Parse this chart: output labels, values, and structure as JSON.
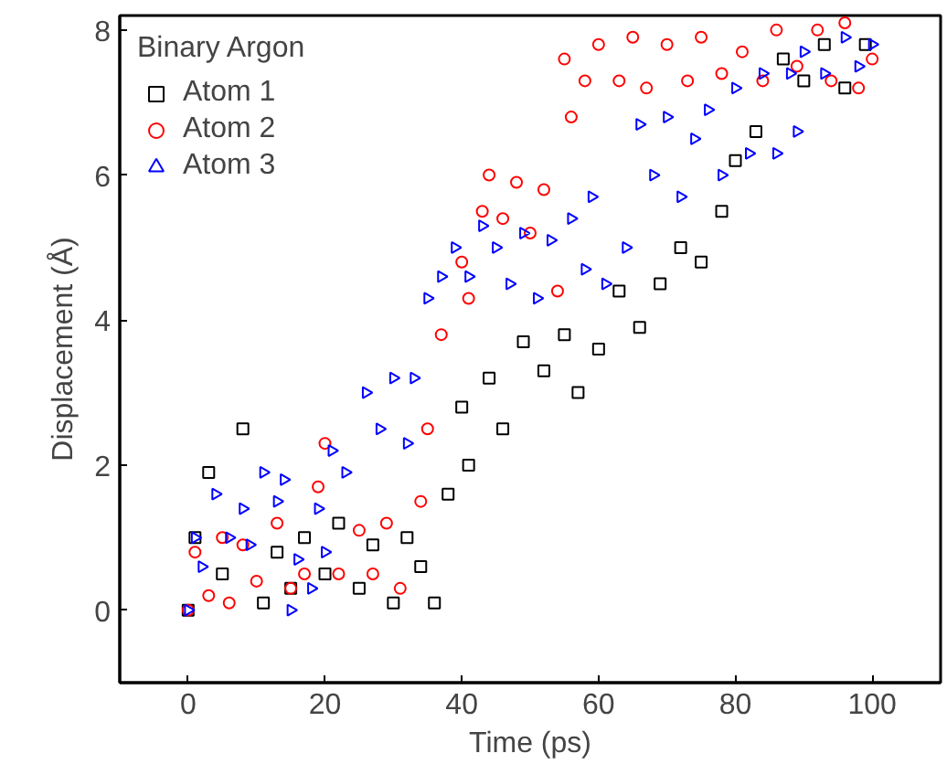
{
  "chart_data": {
    "type": "scatter",
    "xlabel": "Time (ps)",
    "ylabel": "Displacement (Å)",
    "legend_title": "Binary Argon",
    "legend": "top left",
    "grid": false,
    "xlim": [
      -10,
      110
    ],
    "xticks": [
      0,
      20,
      40,
      60,
      80,
      100
    ],
    "ylim": [
      -1,
      8.2
    ],
    "yticks": [
      0,
      2,
      4,
      6,
      8
    ],
    "series": [
      {
        "name": "Atom 1",
        "color": "#000000",
        "marker": "square",
        "x": [
          0,
          1,
          3,
          5,
          8,
          11,
          13,
          15,
          17,
          20,
          22,
          25,
          27,
          30,
          32,
          34,
          36,
          38,
          40,
          41,
          44,
          46,
          49,
          52,
          55,
          57,
          60,
          63,
          66,
          69,
          72,
          75,
          78,
          80,
          83,
          87,
          90,
          93,
          96,
          99
        ],
        "values": [
          0,
          1,
          1.9,
          0.5,
          2.5,
          0.1,
          0.8,
          0.3,
          1,
          0.5,
          1.2,
          0.3,
          0.9,
          0.1,
          1,
          0.6,
          0.1,
          1.6,
          2.8,
          2,
          3.2,
          2.5,
          3.7,
          3.3,
          3.8,
          3,
          3.6,
          4.4,
          3.9,
          4.5,
          5,
          4.8,
          5.5,
          6.2,
          6.6,
          7.6,
          7.3,
          7.8,
          7.2,
          7.8
        ]
      },
      {
        "name": "Atom 2",
        "color": "#ff0000",
        "marker": "circle",
        "x": [
          0,
          1,
          3,
          5,
          6,
          8,
          10,
          13,
          15,
          17,
          19,
          20,
          22,
          25,
          27,
          29,
          31,
          34,
          35,
          37,
          40,
          41,
          43,
          44,
          46,
          48,
          50,
          52,
          54,
          55,
          56,
          58,
          60,
          63,
          65,
          67,
          70,
          73,
          75,
          78,
          81,
          84,
          86,
          89,
          92,
          94,
          96,
          98,
          100
        ],
        "values": [
          0,
          0.8,
          0.2,
          1,
          0.1,
          0.9,
          0.4,
          1.2,
          0.3,
          0.5,
          1.7,
          2.3,
          0.5,
          1.1,
          0.5,
          1.2,
          0.3,
          1.5,
          2.5,
          3.8,
          4.8,
          4.3,
          5.5,
          6,
          5.4,
          5.9,
          5.2,
          5.8,
          4.4,
          7.6,
          6.8,
          7.3,
          7.8,
          7.3,
          7.9,
          7.2,
          7.8,
          7.3,
          7.9,
          7.4,
          7.7,
          7.3,
          8,
          7.5,
          8,
          7.3,
          8.1,
          7.2,
          7.6
        ]
      },
      {
        "name": "Atom 3",
        "color": "#0000ff",
        "marker": "triangle",
        "x": [
          0,
          1,
          2,
          4,
          6,
          8,
          9,
          11,
          13,
          14,
          15,
          16,
          18,
          19,
          20,
          21,
          23,
          26,
          28,
          30,
          32,
          33,
          35,
          37,
          39,
          41,
          43,
          45,
          47,
          49,
          51,
          53,
          56,
          58,
          59,
          61,
          64,
          66,
          68,
          70,
          72,
          74,
          76,
          78,
          80,
          82,
          84,
          86,
          88,
          89,
          90,
          93,
          96,
          98,
          100
        ],
        "values": [
          0,
          1,
          0.6,
          1.6,
          1,
          1.4,
          0.9,
          1.9,
          1.5,
          1.8,
          0,
          0.7,
          0.3,
          1.4,
          0.8,
          2.2,
          1.9,
          3,
          2.5,
          3.2,
          2.3,
          3.2,
          4.3,
          4.6,
          5,
          4.6,
          5.3,
          5,
          4.5,
          5.2,
          4.3,
          5.1,
          5.4,
          4.7,
          5.7,
          4.5,
          5,
          6.7,
          6,
          6.8,
          5.7,
          6.5,
          6.9,
          6,
          7.2,
          6.3,
          7.4,
          6.3,
          7.4,
          6.6,
          7.7,
          7.4,
          7.9,
          7.5,
          7.8
        ]
      }
    ]
  }
}
